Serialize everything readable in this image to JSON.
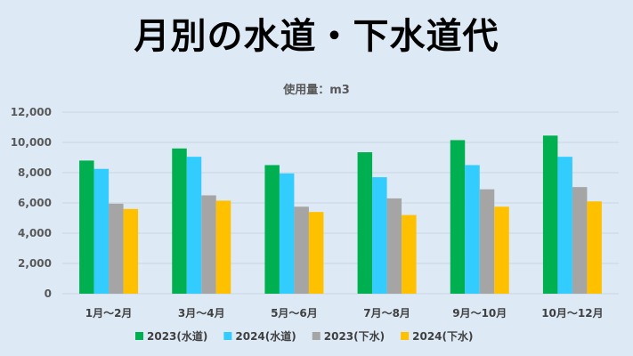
{
  "chart_data": {
    "type": "bar",
    "title": "月別の水道・下水道代",
    "subtitle": "使用量：m3",
    "categories": [
      "1月～2月",
      "3月～4月",
      "5月～6月",
      "7月～8月",
      "9月～10月",
      "10月～12月"
    ],
    "series": [
      {
        "name": "2023(水道)",
        "color": "#00b050",
        "values": [
          8800,
          9600,
          8500,
          9350,
          10150,
          10450
        ]
      },
      {
        "name": "2024(水道)",
        "color": "#33ccff",
        "values": [
          8250,
          9050,
          7950,
          7700,
          8500,
          9050
        ]
      },
      {
        "name": "2023(下水)",
        "color": "#a5a5a5",
        "values": [
          5950,
          6500,
          5750,
          6300,
          6900,
          7050
        ]
      },
      {
        "name": "2024(下水)",
        "color": "#ffc000",
        "values": [
          5600,
          6150,
          5400,
          5200,
          5750,
          6100
        ]
      }
    ],
    "ylim": [
      0,
      12000
    ],
    "yticks": [
      0,
      2000,
      4000,
      6000,
      8000,
      10000,
      12000
    ],
    "ytick_labels": [
      "0",
      "2,000",
      "4,000",
      "6,000",
      "8,000",
      "10,000",
      "12,000"
    ],
    "grid": true,
    "legend": "bottom"
  }
}
